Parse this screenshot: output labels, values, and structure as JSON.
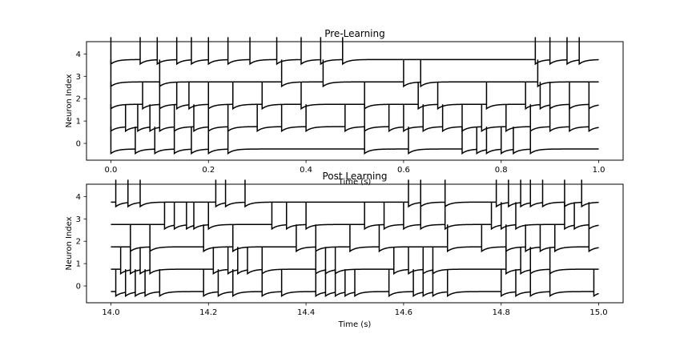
{
  "chart_data": [
    {
      "type": "line",
      "title": "Pre-Learning",
      "xlabel": "Time (s)",
      "ylabel": "Neuron Index",
      "xlim": [
        -0.05,
        1.05
      ],
      "ylim": [
        -0.75,
        4.55
      ],
      "xticks": [
        0.0,
        0.2,
        0.4,
        0.6,
        0.8,
        1.0
      ],
      "xtick_labels": [
        "0.0",
        "0.2",
        "0.4",
        "0.6",
        "0.8",
        "1.0"
      ],
      "yticks": [
        0,
        1,
        2,
        3,
        4
      ],
      "ytick_labels": [
        "0",
        "1",
        "2",
        "3",
        "4"
      ],
      "t_start": 0.0,
      "t_end": 1.0,
      "grid": false,
      "neurons": [
        {
          "index": 0,
          "spikes": [
            0.0,
            0.05,
            0.09,
            0.13,
            0.165,
            0.2,
            0.24,
            0.52,
            0.61,
            0.72,
            0.75,
            0.77,
            0.8,
            0.825,
            0.86
          ]
        },
        {
          "index": 1,
          "spikes": [
            0.0,
            0.03,
            0.055,
            0.08,
            0.1,
            0.13,
            0.17,
            0.2,
            0.24,
            0.3,
            0.35,
            0.4,
            0.48,
            0.52,
            0.57,
            0.6,
            0.64,
            0.68,
            0.72,
            0.76,
            0.81,
            0.86,
            0.9,
            0.94,
            0.98
          ]
        },
        {
          "index": 2,
          "spikes": [
            0.0,
            0.065,
            0.1,
            0.135,
            0.16,
            0.2,
            0.25,
            0.31,
            0.39,
            0.52,
            0.63,
            0.67,
            0.77,
            0.85,
            0.88,
            0.9,
            0.94,
            0.98
          ]
        },
        {
          "index": 3,
          "spikes": [
            0.0,
            0.1,
            0.35,
            0.435,
            0.6,
            0.635,
            0.875
          ]
        },
        {
          "index": 4,
          "spikes": [
            0.0,
            0.06,
            0.095,
            0.135,
            0.165,
            0.2,
            0.24,
            0.285,
            0.34,
            0.39,
            0.43,
            0.475,
            0.87,
            0.9,
            0.935,
            0.96
          ]
        }
      ]
    },
    {
      "type": "line",
      "title": "Post Learning",
      "xlabel": "Time (s)",
      "ylabel": "Neuron Index",
      "xlim": [
        13.95,
        15.05
      ],
      "ylim": [
        -0.75,
        4.55
      ],
      "xticks": [
        14.0,
        14.2,
        14.4,
        14.6,
        14.8,
        15.0
      ],
      "xtick_labels": [
        "14.0",
        "14.2",
        "14.4",
        "14.6",
        "14.8",
        "15.0"
      ],
      "yticks": [
        0,
        1,
        2,
        3,
        4
      ],
      "ytick_labels": [
        "0",
        "1",
        "2",
        "3",
        "4"
      ],
      "t_start": 14.0,
      "t_end": 15.0,
      "grid": false,
      "neurons": [
        {
          "index": 0,
          "spikes": [
            14.01,
            14.03,
            14.05,
            14.07,
            14.1,
            14.19,
            14.22,
            14.25,
            14.31,
            14.35,
            14.42,
            14.44,
            14.46,
            14.48,
            14.5,
            14.57,
            14.62,
            14.64,
            14.66,
            14.69,
            14.8,
            14.83,
            14.86,
            14.9,
            14.99
          ]
        },
        {
          "index": 1,
          "spikes": [
            14.02,
            14.04,
            14.06,
            14.08,
            14.21,
            14.24,
            14.26,
            14.28,
            14.31,
            14.42,
            14.44,
            14.46,
            14.58,
            14.61,
            14.64,
            14.66,
            14.81,
            14.84,
            14.86,
            14.9
          ]
        },
        {
          "index": 2,
          "spikes": [
            14.04,
            14.08,
            14.19,
            14.25,
            14.38,
            14.42,
            14.49,
            14.55,
            14.69,
            14.76,
            14.81,
            14.85,
            14.88,
            14.91,
            14.98
          ]
        },
        {
          "index": 3,
          "spikes": [
            14.11,
            14.13,
            14.155,
            14.17,
            14.2,
            14.33,
            14.36,
            14.4,
            14.52,
            14.56,
            14.6,
            14.635,
            14.685,
            14.78,
            14.8,
            14.83,
            14.93,
            14.95,
            14.98
          ]
        },
        {
          "index": 4,
          "spikes": [
            14.01,
            14.035,
            14.06,
            14.215,
            14.235,
            14.275,
            14.61,
            14.635,
            14.685,
            14.79,
            14.815,
            14.84,
            14.86,
            14.885,
            14.93,
            14.965
          ]
        }
      ]
    }
  ]
}
